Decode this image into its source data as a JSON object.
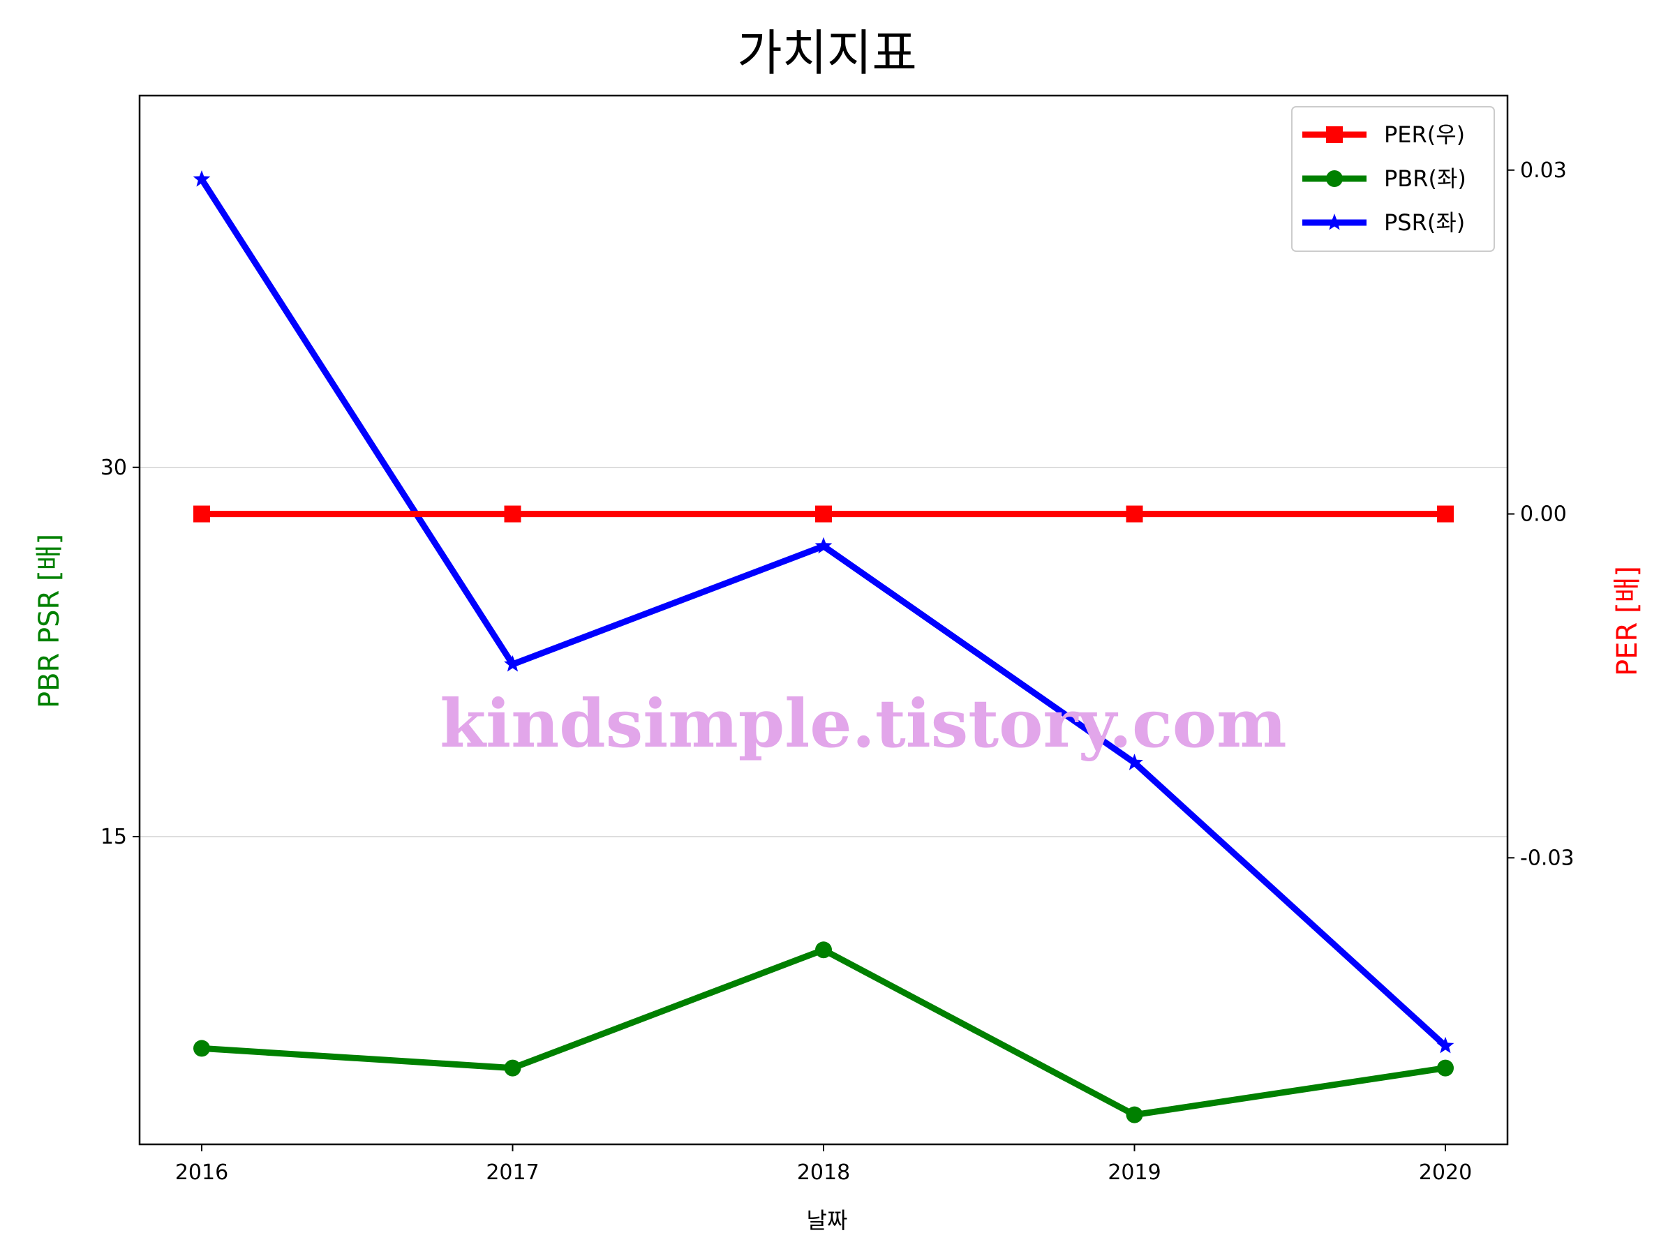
{
  "chart_data": {
    "type": "line",
    "title": "가치지표",
    "xlabel": "날짜",
    "ylabel_left": "PBR PSR [배]",
    "ylabel_right": "PER [배]",
    "categories": [
      "2016",
      "2017",
      "2018",
      "2019",
      "2020"
    ],
    "ylim_left": [
      2.5,
      45.1
    ],
    "yticks_left": [
      15,
      30
    ],
    "ylim_right": [
      -0.055,
      0.0365
    ],
    "yticks_right": [
      {
        "value": 0.03,
        "label": "0.03"
      },
      {
        "value": 0.0,
        "label": "0.00"
      },
      {
        "value": -0.03,
        "label": "-0.03"
      }
    ],
    "grid": "horizontal (left axis)",
    "legend_position": "upper right",
    "series": [
      {
        "name": "PER(우)",
        "axis": "right",
        "color": "#ff0000",
        "marker": "square",
        "values": [
          0,
          0,
          0,
          0,
          0
        ]
      },
      {
        "name": "PBR(좌)",
        "axis": "left",
        "color": "#008000",
        "marker": "circle",
        "values": [
          6.4,
          5.6,
          10.4,
          3.7,
          5.6
        ]
      },
      {
        "name": "PSR(좌)",
        "axis": "left",
        "color": "#0000ff",
        "marker": "star",
        "values": [
          41.7,
          22.0,
          26.8,
          18.0,
          6.5
        ]
      }
    ],
    "watermark": "kindsimple.tistory.com"
  }
}
